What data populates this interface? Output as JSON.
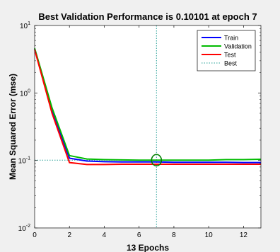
{
  "chart_data": {
    "type": "line",
    "title": "Best Validation Performance is 0.10101 at epoch 7",
    "xlabel": "13 Epochs",
    "ylabel": "Mean Squared Error  (mse)",
    "xlim": [
      0,
      13
    ],
    "ylim": [
      0.01,
      10
    ],
    "yscale": "log",
    "x_ticks": [
      0,
      2,
      4,
      6,
      8,
      10,
      12
    ],
    "x_tick_labels": [
      "0",
      "2",
      "4",
      "6",
      "8",
      "10",
      "12"
    ],
    "y_ticks": [
      {
        "value": 0.01,
        "base": "10",
        "exp": "-2"
      },
      {
        "value": 0.1,
        "base": "10",
        "exp": "-1"
      },
      {
        "value": 1,
        "base": "10",
        "exp": "0"
      },
      {
        "value": 10,
        "base": "10",
        "exp": "1"
      }
    ],
    "x": [
      0,
      1,
      2,
      3,
      4,
      5,
      6,
      7,
      8,
      9,
      10,
      11,
      12,
      13
    ],
    "series": [
      {
        "name": "Train",
        "color": "#0000ff",
        "values": [
          4.5,
          0.55,
          0.108,
          0.098,
          0.096,
          0.095,
          0.095,
          0.095,
          0.094,
          0.094,
          0.094,
          0.094,
          0.093,
          0.093
        ]
      },
      {
        "name": "Validation",
        "color": "#00bb00",
        "values": [
          4.6,
          0.6,
          0.118,
          0.105,
          0.103,
          0.102,
          0.101,
          0.10101,
          0.101,
          0.101,
          0.101,
          0.103,
          0.103,
          0.104
        ]
      },
      {
        "name": "Test",
        "color": "#ff0000",
        "values": [
          4.4,
          0.5,
          0.093,
          0.087,
          0.087,
          0.088,
          0.088,
          0.088,
          0.088,
          0.088,
          0.088,
          0.088,
          0.088,
          0.088
        ]
      }
    ],
    "best": {
      "name": "Best",
      "epoch": 7,
      "value": 0.10101,
      "color": "#2aa198"
    },
    "legend": {
      "placement": "top-right",
      "entries": [
        "Train",
        "Validation",
        "Test",
        "Best"
      ]
    },
    "grid": false
  }
}
